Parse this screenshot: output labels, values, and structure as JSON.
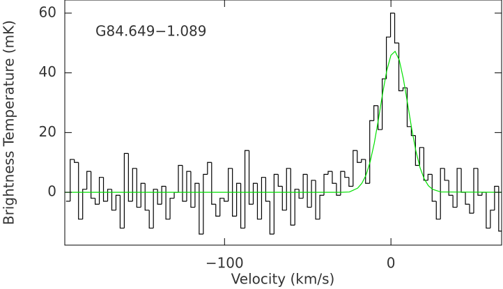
{
  "chart_data": {
    "type": "step",
    "annotation": "G84.649−1.089",
    "x_label": "Velocity (km/s)",
    "y_label": "Brightness Temperature (mK)",
    "xlim": [
      -196,
      66.5
    ],
    "ylim": [
      -17.7,
      64.4
    ],
    "xticks": [
      {
        "value": -100,
        "label": "−100"
      },
      0
    ],
    "yticks": [
      0,
      20,
      40,
      60
    ],
    "series": [
      {
        "type": "step",
        "color": "#000000",
        "x": [
          -194,
          -191.5,
          -189,
          -186.5,
          -184,
          -181.5,
          -179,
          -176.5,
          -174,
          -171.5,
          -169,
          -166.5,
          -164,
          -161.5,
          -159,
          -156.5,
          -154,
          -151.5,
          -149,
          -146.5,
          -144,
          -141.5,
          -139,
          -136.5,
          -134,
          -131.5,
          -129,
          -126.5,
          -124,
          -121.5,
          -119,
          -116.5,
          -114,
          -111.5,
          -109,
          -106.5,
          -104,
          -101.5,
          -99,
          -96.5,
          -94,
          -91.5,
          -89,
          -86.5,
          -84,
          -81.5,
          -79,
          -76.5,
          -74,
          -71.5,
          -69,
          -66.5,
          -64,
          -61.5,
          -59,
          -56.5,
          -54,
          -51.5,
          -49,
          -46.5,
          -44,
          -41.5,
          -39,
          -36.5,
          -34,
          -31.5,
          -29,
          -26.5,
          -24,
          -21.5,
          -19,
          -16.5,
          -14,
          -11.5,
          -9,
          -6.5,
          -4,
          -1.5,
          1,
          3.5,
          6,
          8.5,
          11,
          13.5,
          16,
          18.5,
          21,
          23.5,
          26,
          28.5,
          31,
          33.5,
          36,
          38.5,
          41,
          43.5,
          46,
          48.5,
          51,
          53.5,
          56,
          58.5,
          61,
          63.5,
          66
        ],
        "values": [
          -3,
          11,
          10,
          -9,
          1,
          7,
          -2,
          -4,
          5,
          -3,
          1,
          -6,
          -1,
          -12,
          13,
          -3,
          8,
          -5,
          3,
          -6,
          -12,
          1,
          -4,
          2,
          -9,
          -2,
          0,
          9,
          -3,
          7,
          -5,
          3,
          -14,
          6,
          10,
          -4,
          -8,
          -2,
          -3,
          8,
          -8,
          3,
          -12,
          14,
          -4,
          3,
          -9,
          5,
          -3,
          -14,
          6,
          2,
          -6,
          8,
          -11,
          1,
          -2,
          6,
          -5,
          4,
          -9,
          -1,
          6,
          7,
          3,
          -1,
          7,
          5,
          2,
          14,
          10,
          11,
          3,
          24,
          29,
          21,
          38,
          52,
          60,
          50,
          34,
          35,
          22,
          19,
          9,
          15,
          4,
          6,
          -3,
          -9,
          8,
          4,
          -1,
          -5,
          8,
          0,
          -4,
          -7,
          8,
          -1,
          0,
          -12,
          -6,
          2,
          -13
        ]
      },
      {
        "type": "line",
        "color": "#00e000",
        "x": [
          -196,
          -30,
          -25,
          -20,
          -17.5,
          -15,
          -12.5,
          -10,
          -7.5,
          -5,
          -2.5,
          0,
          2.5,
          5,
          7.5,
          10,
          12.5,
          15,
          17.5,
          20,
          22.5,
          25,
          30,
          66.5
        ],
        "values": [
          0,
          0,
          0.1,
          1.4,
          3.0,
          5.7,
          10.2,
          16.5,
          24.5,
          33.1,
          40.8,
          45.9,
          47.2,
          44.3,
          37.9,
          29.7,
          21.2,
          13.8,
          8.2,
          4.5,
          2.2,
          1.0,
          0.1,
          0
        ]
      }
    ]
  }
}
